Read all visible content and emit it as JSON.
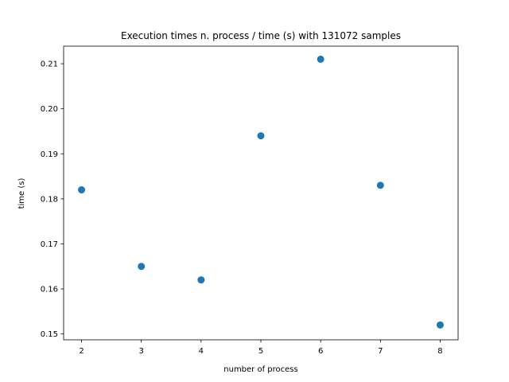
{
  "chart_data": {
    "type": "scatter",
    "title": "Execution times n. process / time (s) with 131072 samples",
    "xlabel": "number of process",
    "ylabel": "time (s)",
    "x": [
      2,
      3,
      4,
      5,
      6,
      7,
      8
    ],
    "y": [
      0.182,
      0.165,
      0.162,
      0.194,
      0.211,
      0.183,
      0.152
    ],
    "xlim": [
      1.7,
      8.3
    ],
    "ylim": [
      0.1487,
      0.2139
    ],
    "xticks": [
      2,
      3,
      4,
      5,
      6,
      7,
      8
    ],
    "xtick_labels": [
      "2",
      "3",
      "4",
      "5",
      "6",
      "7",
      "8"
    ],
    "yticks": [
      0.15,
      0.16,
      0.17,
      0.18,
      0.19,
      0.2,
      0.21
    ],
    "ytick_labels": [
      "0.15",
      "0.16",
      "0.17",
      "0.18",
      "0.19",
      "0.20",
      "0.21"
    ],
    "grid": false,
    "marker_color": "#1f77b4"
  }
}
